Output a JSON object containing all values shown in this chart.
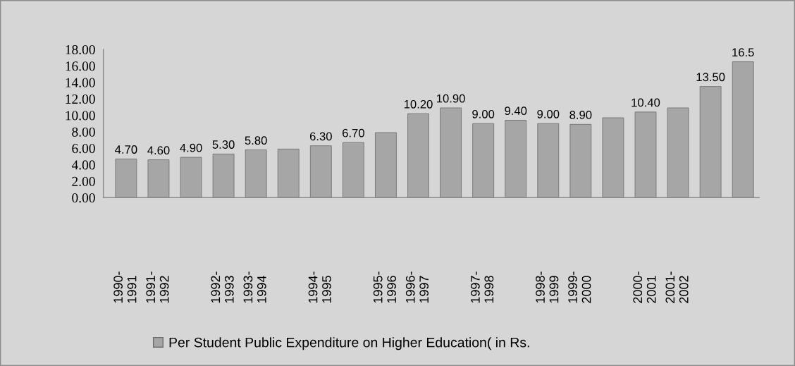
{
  "chart_data": {
    "type": "bar",
    "categories": [
      "1990-1991",
      "1991-1992",
      null,
      "1992-1993",
      "1993-1994",
      null,
      "1994-1995",
      null,
      "1995-1996",
      "1996-1997",
      null,
      "1997-1998",
      null,
      "1998-1999",
      "1999-2000",
      null,
      "2000-2001",
      "2001-2002",
      null,
      null
    ],
    "series": [
      {
        "name": "Per Student Public Expenditure on Higher Education( in Rs.",
        "color": "#a6a6a6",
        "values": [
          4.7,
          4.6,
          4.9,
          5.3,
          5.8,
          5.9,
          6.3,
          6.7,
          7.9,
          10.2,
          10.9,
          9.0,
          9.4,
          9.0,
          8.9,
          9.7,
          10.4,
          10.9,
          13.5,
          16.5
        ],
        "value_labels": [
          "4.70",
          "4.60",
          "4.90",
          "5.30",
          "5.80",
          null,
          "6.30",
          "6.70",
          null,
          "10.20",
          "10.90",
          "9.00",
          "9.40",
          "9.00",
          "8.90",
          null,
          "10.40",
          null,
          "13.50",
          "16.5"
        ]
      }
    ],
    "ylim": [
      0,
      18
    ],
    "yticks": [
      {
        "value": 0,
        "label": "0.00"
      },
      {
        "value": 2,
        "label": "2.00"
      },
      {
        "value": 4,
        "label": "4.00"
      },
      {
        "value": 6,
        "label": "6.00"
      },
      {
        "value": 8,
        "label": "8.00"
      },
      {
        "value": 10,
        "label": "10.00"
      },
      {
        "value": 12,
        "label": "12.00"
      },
      {
        "value": 14,
        "label": "14.00"
      },
      {
        "value": 16,
        "label": "16.00"
      },
      {
        "value": 18,
        "label": "18.00"
      }
    ],
    "grid": false,
    "legend": "bottom"
  }
}
